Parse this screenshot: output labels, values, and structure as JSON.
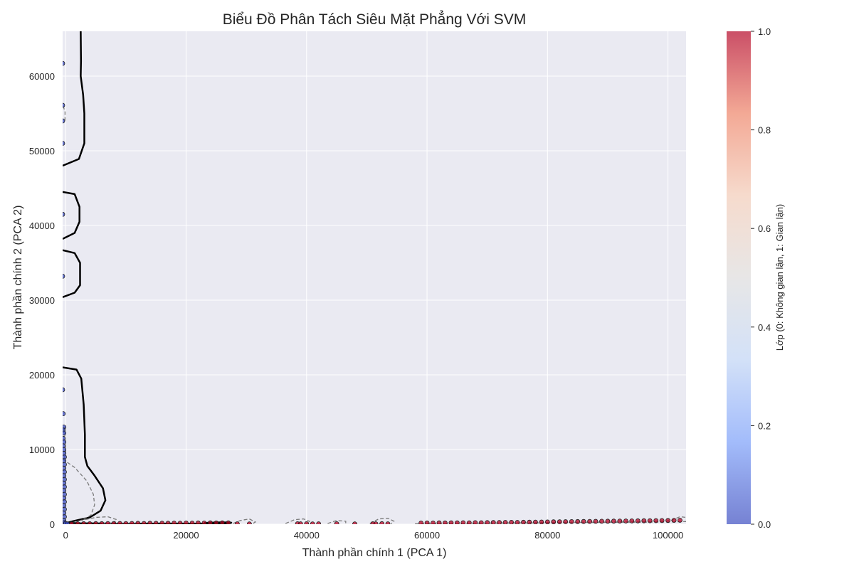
{
  "chart_data": {
    "type": "scatter",
    "title": "Biểu Đồ Phân Tách Siêu Mặt Phẳng Với SVM",
    "xlabel": "Thành phần chính 1 (PCA 1)",
    "ylabel": "Thành phần chính 2 (PCA 2)",
    "xlim": [
      -500,
      103000
    ],
    "ylim": [
      0,
      66000
    ],
    "x_ticks": [
      0,
      20000,
      40000,
      60000,
      80000,
      100000
    ],
    "y_ticks": [
      0,
      10000,
      20000,
      30000,
      40000,
      50000,
      60000
    ],
    "grid": true,
    "background_color": "#eaeaf2",
    "colorbar": {
      "label": "Lớp (0: Không gian lận, 1: Gian lận)",
      "range": [
        0.0,
        1.0
      ],
      "ticks": [
        "0.0",
        "0.2",
        "0.4",
        "0.6",
        "0.8",
        "1.0"
      ],
      "colormap": "coolwarm",
      "colors": [
        "#3b4cc0",
        "#7b9ff9",
        "#c0d4f5",
        "#dddcdc",
        "#f2cbb7",
        "#ee8468",
        "#b40426"
      ]
    },
    "series": [
      {
        "class": 0,
        "color": "#3b4cc0",
        "points": [
          [
            -500,
            61700
          ],
          [
            -500,
            56100
          ],
          [
            -500,
            54000
          ],
          [
            -500,
            51000
          ],
          [
            -500,
            41500
          ],
          [
            -500,
            33200
          ],
          [
            -500,
            18000
          ],
          [
            -400,
            14800
          ],
          [
            -300,
            13000
          ],
          [
            -400,
            12600
          ],
          [
            -300,
            12200
          ],
          [
            -400,
            11500
          ],
          [
            -300,
            11000
          ],
          [
            -400,
            10500
          ],
          [
            -300,
            10000
          ],
          [
            -300,
            9500
          ],
          [
            -200,
            9000
          ],
          [
            -300,
            8500
          ],
          [
            -200,
            8000
          ],
          [
            -300,
            7500
          ],
          [
            -200,
            7000
          ],
          [
            -300,
            6500
          ],
          [
            -200,
            6000
          ],
          [
            -300,
            5500
          ],
          [
            -200,
            5000
          ],
          [
            -300,
            4500
          ],
          [
            -200,
            4000
          ],
          [
            -300,
            3500
          ],
          [
            -200,
            3000
          ],
          [
            -300,
            2500
          ],
          [
            -200,
            2000
          ],
          [
            -300,
            1500
          ],
          [
            -200,
            1000
          ],
          [
            -300,
            500
          ],
          [
            -200,
            200
          ],
          [
            0,
            100
          ],
          [
            300,
            50
          ]
        ]
      },
      {
        "class": 1,
        "color": "#b40426",
        "points": [
          [
            1000,
            50
          ],
          [
            2000,
            60
          ],
          [
            3000,
            70
          ],
          [
            4000,
            60
          ],
          [
            5000,
            80
          ],
          [
            6000,
            70
          ],
          [
            7000,
            90
          ],
          [
            8000,
            80
          ],
          [
            9000,
            100
          ],
          [
            10000,
            90
          ],
          [
            11000,
            100
          ],
          [
            12000,
            110
          ],
          [
            13000,
            100
          ],
          [
            14000,
            120
          ],
          [
            15000,
            110
          ],
          [
            16000,
            130
          ],
          [
            17000,
            120
          ],
          [
            18000,
            140
          ],
          [
            19000,
            130
          ],
          [
            20000,
            150
          ],
          [
            21000,
            140
          ],
          [
            22000,
            160
          ],
          [
            23000,
            150
          ],
          [
            24000,
            170
          ],
          [
            25000,
            160
          ],
          [
            26000,
            180
          ],
          [
            27000,
            170
          ],
          [
            28500,
            50
          ],
          [
            30500,
            40
          ],
          [
            38500,
            60
          ],
          [
            39000,
            50
          ],
          [
            40000,
            60
          ],
          [
            41000,
            40
          ],
          [
            42000,
            50
          ],
          [
            45000,
            60
          ],
          [
            48000,
            40
          ],
          [
            51000,
            60
          ],
          [
            51500,
            50
          ],
          [
            52500,
            70
          ],
          [
            53500,
            50
          ],
          [
            59000,
            150
          ],
          [
            60000,
            160
          ],
          [
            61000,
            150
          ],
          [
            62000,
            170
          ],
          [
            63000,
            160
          ],
          [
            64000,
            180
          ],
          [
            65000,
            170
          ],
          [
            66000,
            190
          ],
          [
            67000,
            180
          ],
          [
            68000,
            200
          ],
          [
            69000,
            190
          ],
          [
            70000,
            210
          ],
          [
            71000,
            220
          ],
          [
            72000,
            230
          ],
          [
            73000,
            240
          ],
          [
            74000,
            250
          ],
          [
            75000,
            240
          ],
          [
            76000,
            260
          ],
          [
            77000,
            270
          ],
          [
            78000,
            280
          ],
          [
            79000,
            290
          ],
          [
            80000,
            300
          ],
          [
            81000,
            310
          ],
          [
            82000,
            320
          ],
          [
            83000,
            330
          ],
          [
            84000,
            340
          ],
          [
            85000,
            350
          ],
          [
            86000,
            360
          ],
          [
            87000,
            370
          ],
          [
            88000,
            380
          ],
          [
            89000,
            390
          ],
          [
            90000,
            400
          ],
          [
            91000,
            410
          ],
          [
            92000,
            420
          ],
          [
            93000,
            430
          ],
          [
            94000,
            440
          ],
          [
            95000,
            450
          ],
          [
            96000,
            460
          ],
          [
            97000,
            470
          ],
          [
            98000,
            480
          ],
          [
            99000,
            490
          ],
          [
            100000,
            500
          ],
          [
            101000,
            510
          ],
          [
            102000,
            520
          ]
        ]
      }
    ],
    "decision_boundary": [
      [
        [
          2500,
          66000
        ],
        [
          2550,
          62000
        ],
        [
          2500,
          60000
        ],
        [
          2900,
          57500
        ],
        [
          3100,
          55000
        ],
        [
          3100,
          51000
        ],
        [
          2200,
          48900
        ],
        [
          -500,
          48000
        ]
      ],
      [
        [
          -500,
          44500
        ],
        [
          1500,
          44200
        ],
        [
          2300,
          42500
        ],
        [
          2300,
          40500
        ],
        [
          1500,
          39000
        ],
        [
          -500,
          38200
        ]
      ],
      [
        [
          -500,
          36700
        ],
        [
          1500,
          36300
        ],
        [
          2400,
          35000
        ],
        [
          2400,
          32000
        ],
        [
          1500,
          31000
        ],
        [
          -500,
          30400
        ]
      ],
      [
        [
          -500,
          21000
        ],
        [
          1800,
          20700
        ],
        [
          2600,
          19500
        ],
        [
          3000,
          16000
        ],
        [
          3200,
          12000
        ],
        [
          3200,
          9000
        ],
        [
          3600,
          7800
        ],
        [
          4800,
          6500
        ],
        [
          6200,
          4800
        ],
        [
          6600,
          3200
        ],
        [
          5800,
          1800
        ],
        [
          4000,
          900
        ],
        [
          1200,
          400
        ],
        [
          300,
          200
        ],
        [
          2000,
          120
        ],
        [
          10000,
          60
        ],
        [
          20000,
          80
        ],
        [
          27000,
          80
        ]
      ],
      [
        [
          23000,
          150
        ],
        [
          24000,
          200
        ],
        [
          26000,
          250
        ],
        [
          27500,
          200
        ],
        [
          27000,
          100
        ]
      ]
    ],
    "margins": [
      [
        [
          -400,
          56000
        ],
        [
          -100,
          55200
        ],
        [
          -100,
          54000
        ]
      ],
      [
        [
          -500,
          8700
        ],
        [
          1500,
          7600
        ],
        [
          3500,
          5800
        ],
        [
          4600,
          4000
        ],
        [
          4800,
          2600
        ],
        [
          4200,
          1200
        ],
        [
          2500,
          500
        ],
        [
          5000,
          900
        ],
        [
          7000,
          1000
        ],
        [
          8500,
          600
        ],
        [
          8000,
          200
        ],
        [
          6000,
          60
        ],
        [
          9000,
          40
        ],
        [
          12000,
          20
        ]
      ],
      [
        [
          -200,
          13000
        ],
        [
          -100,
          11500
        ],
        [
          0,
          9800
        ],
        [
          -200,
          8700
        ]
      ],
      [
        [
          27800,
          100
        ],
        [
          29000,
          500
        ],
        [
          30500,
          700
        ],
        [
          31500,
          300
        ],
        [
          31000,
          50
        ]
      ],
      [
        [
          36500,
          100
        ],
        [
          38000,
          600
        ],
        [
          39500,
          700
        ],
        [
          40500,
          400
        ],
        [
          40000,
          50
        ]
      ],
      [
        [
          43500,
          100
        ],
        [
          45000,
          500
        ],
        [
          46500,
          400
        ],
        [
          46500,
          50
        ]
      ],
      [
        [
          50500,
          100
        ],
        [
          52000,
          700
        ],
        [
          53500,
          800
        ],
        [
          54500,
          400
        ],
        [
          54000,
          50
        ]
      ],
      [
        [
          58000,
          50
        ],
        [
          70000,
          150
        ],
        [
          85000,
          250
        ],
        [
          98000,
          350
        ],
        [
          100500,
          500
        ],
        [
          102000,
          1000
        ],
        [
          103000,
          900
        ]
      ],
      [
        [
          60000,
          70
        ],
        [
          75000,
          150
        ],
        [
          90000,
          250
        ],
        [
          100000,
          300
        ],
        [
          103000,
          350
        ]
      ]
    ]
  }
}
